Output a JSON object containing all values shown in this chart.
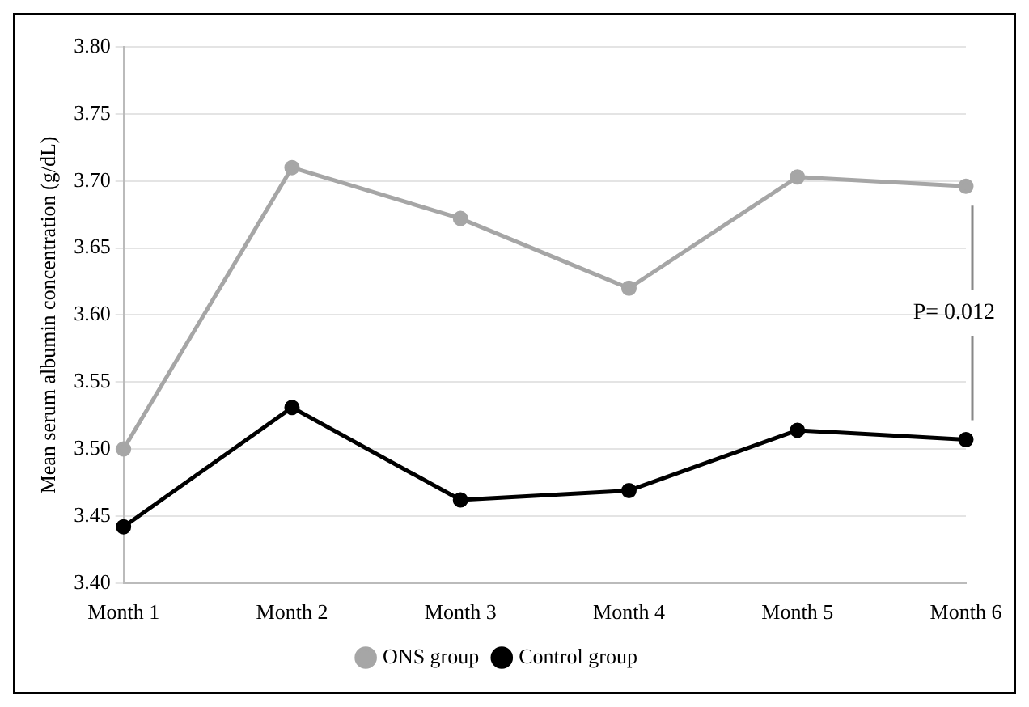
{
  "chart_data": {
    "type": "line",
    "ylabel": "Mean serum albumin concentration (g/dL)",
    "categories": [
      "Month 1",
      "Month 2",
      "Month 3",
      "Month 4",
      "Month 5",
      "Month 6"
    ],
    "series": [
      {
        "name": "ONS group",
        "color": "#a6a6a6",
        "values": [
          3.5,
          3.71,
          3.672,
          3.62,
          3.703,
          3.696
        ]
      },
      {
        "name": "Control group",
        "color": "#000000",
        "values": [
          3.442,
          3.531,
          3.462,
          3.469,
          3.514,
          3.507
        ]
      }
    ],
    "ylim": [
      3.4,
      3.8
    ],
    "yticks": [
      {
        "value": 3.4,
        "label": "3.40"
      },
      3.45,
      {
        "value": 3.5,
        "label": "3.50"
      },
      3.55,
      {
        "value": 3.6,
        "label": "3.60"
      },
      3.65,
      {
        "value": 3.7,
        "label": "3.70"
      },
      3.75,
      {
        "value": 3.8,
        "label": "3.80"
      }
    ],
    "grid": "y",
    "legend": "bottom",
    "marker": "circle",
    "line_style": "solid",
    "annotations": [
      "P= 0.012"
    ]
  }
}
